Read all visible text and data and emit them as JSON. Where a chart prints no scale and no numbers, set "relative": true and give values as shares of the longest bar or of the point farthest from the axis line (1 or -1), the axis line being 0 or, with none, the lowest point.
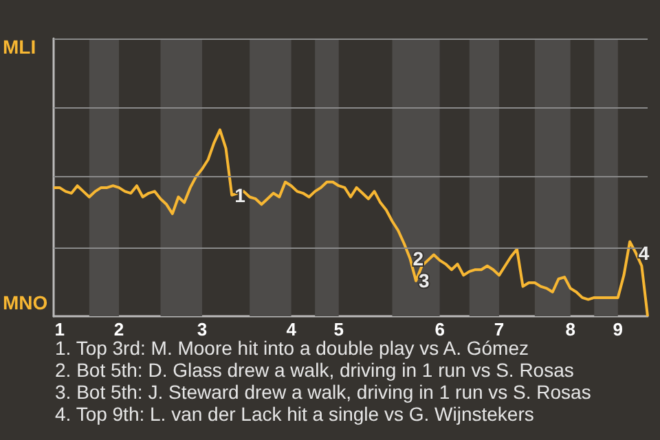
{
  "chart_data": {
    "type": "line",
    "categories": [
      null,
      "1",
      null,
      null,
      null,
      null,
      null,
      null,
      null,
      null,
      null,
      "2",
      null,
      null,
      null,
      null,
      null,
      null,
      null,
      null,
      null,
      null,
      null,
      null,
      null,
      "3",
      null,
      null,
      null,
      null,
      null,
      null,
      null,
      null,
      null,
      null,
      null,
      null,
      null,
      null,
      "4",
      null,
      null,
      null,
      null,
      null,
      null,
      null,
      "5",
      null,
      null,
      null,
      null,
      null,
      null,
      null,
      null,
      null,
      null,
      null,
      null,
      null,
      null,
      null,
      null,
      "6",
      null,
      null,
      null,
      null,
      null,
      null,
      null,
      null,
      null,
      "7",
      null,
      null,
      null,
      null,
      null,
      null,
      null,
      null,
      null,
      null,
      null,
      "8",
      null,
      null,
      null,
      null,
      null,
      null,
      null,
      "9",
      null,
      null,
      null,
      null,
      null
    ],
    "values": [
      0.69,
      0.69,
      0.67,
      0.66,
      0.7,
      0.67,
      0.64,
      0.67,
      0.69,
      0.69,
      0.7,
      0.69,
      0.67,
      0.66,
      0.7,
      0.64,
      0.66,
      0.67,
      0.63,
      0.6,
      0.55,
      0.64,
      0.61,
      0.69,
      0.75,
      0.79,
      0.84,
      0.93,
      1,
      0.9,
      0.65,
      0.66,
      0.67,
      0.64,
      0.63,
      0.6,
      0.63,
      0.66,
      0.64,
      0.72,
      0.7,
      0.67,
      0.66,
      0.64,
      0.67,
      0.69,
      0.72,
      0.72,
      0.7,
      0.69,
      0.64,
      0.69,
      0.66,
      0.63,
      0.67,
      0.61,
      0.57,
      0.51,
      0.46,
      0.39,
      0.31,
      0.19,
      0.27,
      0.3,
      0.33,
      0.3,
      0.28,
      0.25,
      0.28,
      0.22,
      0.24,
      0.25,
      0.25,
      0.27,
      0.25,
      0.22,
      0.27,
      0.32,
      0.36,
      0.16,
      0.18,
      0.18,
      0.16,
      0.15,
      0.13,
      0.2,
      0.21,
      0.15,
      0.13,
      0.1,
      0.09,
      0.1,
      0.1,
      0.1,
      0.1,
      0.1,
      0.22,
      0.4,
      0.34,
      0.27,
      0
    ],
    "relative": true,
    "color": "#f7b733",
    "ref_lines": [
      {
        "axis": "y",
        "value": 0.37,
        "color": "#8a8a8a"
      },
      {
        "axis": "y",
        "value": 0.75,
        "color": "#8a8a8a"
      },
      {
        "axis": "y",
        "value": 1.12,
        "color": "#8a8a8a"
      },
      {
        "axis": "y",
        "value": 1.49,
        "color": "#8a8a8a"
      }
    ],
    "annotations": [
      "MLI",
      "MNO",
      {
        "text": "1",
        "y": 0.65
      },
      {
        "text": "2",
        "y": 0.31
      },
      {
        "text": "3",
        "y": 0.19
      },
      {
        "text": "4",
        "y": 0.34
      },
      "1. Top 3rd: M. Moore hit into a double play vs A. Gómez",
      "2. Bot 5th: D. Glass drew a walk, driving in 1 run vs S. Rosas",
      "3. Bot 5th: J. Steward drew a walk, driving in 1 run vs S. Rosas",
      "4. Top 9th: L. van der Lack hit a single vs G. Wijnstekers"
    ],
    "marker": "none"
  }
}
